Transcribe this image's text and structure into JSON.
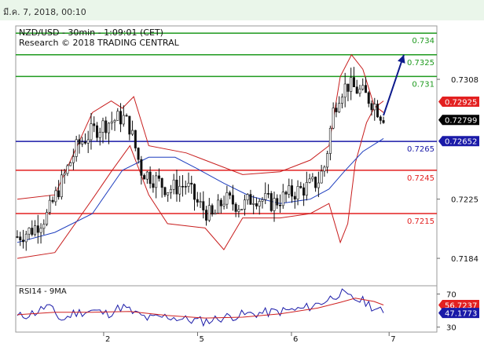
{
  "header": {
    "datetime": "มี.ค. 7, 2018, 00:10"
  },
  "colors": {
    "support": "#e32020",
    "pivot": "#1a1aa8",
    "resistance": "#1e9a1e",
    "bollinger": "#c81e1e",
    "moving_average": "#1f3fbf",
    "rsi": "#1a1aa8",
    "rsi_ma": "#d02020",
    "price_tag": "#000000",
    "arrow": "#0d1a8c"
  },
  "chart_data": [
    {
      "type": "candlestick",
      "title": "NZD/USD - 30min - 1:09:01 (CET)",
      "subtitle": "Research © 2018 TRADING CENTRAL",
      "ylim": [
        0.7165,
        0.7345
      ],
      "y_ticks": [
        {
          "label": "0.7308",
          "value": 0.7308
        },
        {
          "label": "0.7225",
          "value": 0.7225
        },
        {
          "label": "0.7184",
          "value": 0.7184
        }
      ],
      "x_ticks": [
        {
          "label": "2",
          "pos": 0.23
        },
        {
          "label": "5",
          "pos": 0.48
        },
        {
          "label": "6",
          "pos": 0.73
        },
        {
          "label": "7",
          "pos": 0.99
        }
      ],
      "levels": [
        {
          "label": "0.734",
          "value": 0.734,
          "kind": "resistance"
        },
        {
          "label": "0.7325",
          "value": 0.7325,
          "kind": "resistance"
        },
        {
          "label": "0.731",
          "value": 0.731,
          "kind": "resistance"
        },
        {
          "label": "0.7265",
          "value": 0.7265,
          "kind": "pivot"
        },
        {
          "label": "0.7245",
          "value": 0.7245,
          "kind": "support"
        },
        {
          "label": "0.7215",
          "value": 0.7215,
          "kind": "support"
        }
      ],
      "price_tags": [
        {
          "label": "0.72925",
          "value": 0.72925,
          "style": "red"
        },
        {
          "label": "0.72799",
          "value": 0.72799,
          "style": "black"
        },
        {
          "label": "0.72652",
          "value": 0.72652,
          "style": "blue"
        }
      ],
      "close_path": [
        [
          0,
          0.7199
        ],
        [
          0.04,
          0.7204
        ],
        [
          0.08,
          0.7214
        ],
        [
          0.12,
          0.7238
        ],
        [
          0.16,
          0.7262
        ],
        [
          0.2,
          0.7272
        ],
        [
          0.24,
          0.7278
        ],
        [
          0.28,
          0.7282
        ],
        [
          0.3,
          0.7275
        ],
        [
          0.33,
          0.7245
        ],
        [
          0.37,
          0.7238
        ],
        [
          0.4,
          0.7232
        ],
        [
          0.45,
          0.7235
        ],
        [
          0.48,
          0.7222
        ],
        [
          0.52,
          0.7212
        ],
        [
          0.55,
          0.7225
        ],
        [
          0.6,
          0.722
        ],
        [
          0.63,
          0.7227
        ],
        [
          0.68,
          0.7222
        ],
        [
          0.72,
          0.7228
        ],
        [
          0.76,
          0.7232
        ],
        [
          0.8,
          0.7237
        ],
        [
          0.82,
          0.7249
        ],
        [
          0.84,
          0.7285
        ],
        [
          0.86,
          0.73
        ],
        [
          0.88,
          0.7304
        ],
        [
          0.91,
          0.73
        ],
        [
          0.93,
          0.7296
        ],
        [
          0.95,
          0.7291
        ],
        [
          0.97,
          0.7283
        ]
      ],
      "bb_upper": [
        [
          0,
          0.7225
        ],
        [
          0.1,
          0.7228
        ],
        [
          0.2,
          0.7285
        ],
        [
          0.25,
          0.7293
        ],
        [
          0.28,
          0.7288
        ],
        [
          0.31,
          0.7296
        ],
        [
          0.35,
          0.7262
        ],
        [
          0.45,
          0.7257
        ],
        [
          0.5,
          0.7252
        ],
        [
          0.6,
          0.7242
        ],
        [
          0.7,
          0.7244
        ],
        [
          0.78,
          0.7252
        ],
        [
          0.83,
          0.7262
        ],
        [
          0.86,
          0.731
        ],
        [
          0.89,
          0.7325
        ],
        [
          0.92,
          0.7315
        ],
        [
          0.95,
          0.729
        ],
        [
          0.975,
          0.7285
        ]
      ],
      "bb_lower": [
        [
          0,
          0.7184
        ],
        [
          0.1,
          0.7188
        ],
        [
          0.2,
          0.7225
        ],
        [
          0.25,
          0.7244
        ],
        [
          0.3,
          0.7262
        ],
        [
          0.35,
          0.7228
        ],
        [
          0.4,
          0.7208
        ],
        [
          0.5,
          0.7205
        ],
        [
          0.55,
          0.719
        ],
        [
          0.6,
          0.7212
        ],
        [
          0.7,
          0.7212
        ],
        [
          0.78,
          0.7215
        ],
        [
          0.83,
          0.7222
        ],
        [
          0.86,
          0.7195
        ],
        [
          0.88,
          0.7208
        ],
        [
          0.9,
          0.725
        ],
        [
          0.93,
          0.7278
        ],
        [
          0.95,
          0.7288
        ],
        [
          0.975,
          0.7293
        ]
      ],
      "ma_path": [
        [
          0,
          0.7195
        ],
        [
          0.1,
          0.7202
        ],
        [
          0.2,
          0.7215
        ],
        [
          0.28,
          0.7245
        ],
        [
          0.35,
          0.7254
        ],
        [
          0.42,
          0.7254
        ],
        [
          0.48,
          0.7246
        ],
        [
          0.55,
          0.7236
        ],
        [
          0.62,
          0.7227
        ],
        [
          0.7,
          0.7222
        ],
        [
          0.78,
          0.7225
        ],
        [
          0.83,
          0.7232
        ],
        [
          0.87,
          0.7244
        ],
        [
          0.92,
          0.7258
        ],
        [
          0.975,
          0.7267
        ]
      ],
      "arrow": {
        "from": [
          0.975,
          0.7283
        ],
        "to": [
          1.0,
          0.7325
        ]
      }
    },
    {
      "type": "line",
      "title": "RSI14 - 9MA",
      "ylim": [
        24,
        80
      ],
      "y_ticks": [
        {
          "label": "70",
          "value": 70
        },
        {
          "label": "30",
          "value": 30
        }
      ],
      "series": [
        {
          "values": [
            [
              0,
              42
            ],
            [
              0.05,
              48
            ],
            [
              0.08,
              56
            ],
            [
              0.12,
              38
            ],
            [
              0.15,
              47
            ],
            [
              0.2,
              50
            ],
            [
              0.24,
              46
            ],
            [
              0.28,
              55
            ],
            [
              0.31,
              47
            ],
            [
              0.35,
              40
            ],
            [
              0.4,
              43
            ],
            [
              0.45,
              39
            ],
            [
              0.5,
              37
            ],
            [
              0.55,
              42
            ],
            [
              0.6,
              45
            ],
            [
              0.65,
              47
            ],
            [
              0.7,
              49
            ],
            [
              0.76,
              52
            ],
            [
              0.8,
              58
            ],
            [
              0.83,
              64
            ],
            [
              0.86,
              72
            ],
            [
              0.88,
              66
            ],
            [
              0.9,
              64
            ],
            [
              0.93,
              60
            ],
            [
              0.95,
              53
            ],
            [
              0.975,
              47.1773
            ]
          ]
        },
        {
          "values": [
            [
              0,
              45
            ],
            [
              0.1,
              48
            ],
            [
              0.2,
              48
            ],
            [
              0.3,
              49
            ],
            [
              0.4,
              44
            ],
            [
              0.5,
              41
            ],
            [
              0.6,
              42
            ],
            [
              0.7,
              46
            ],
            [
              0.8,
              53
            ],
            [
              0.86,
              60
            ],
            [
              0.9,
              65
            ],
            [
              0.95,
              61
            ],
            [
              0.975,
              56.7237
            ]
          ]
        }
      ],
      "price_tags": [
        {
          "label": "56.7237",
          "value": 56.7237,
          "style": "red"
        },
        {
          "label": "47.1773",
          "value": 47.1773,
          "style": "blue"
        }
      ]
    }
  ]
}
